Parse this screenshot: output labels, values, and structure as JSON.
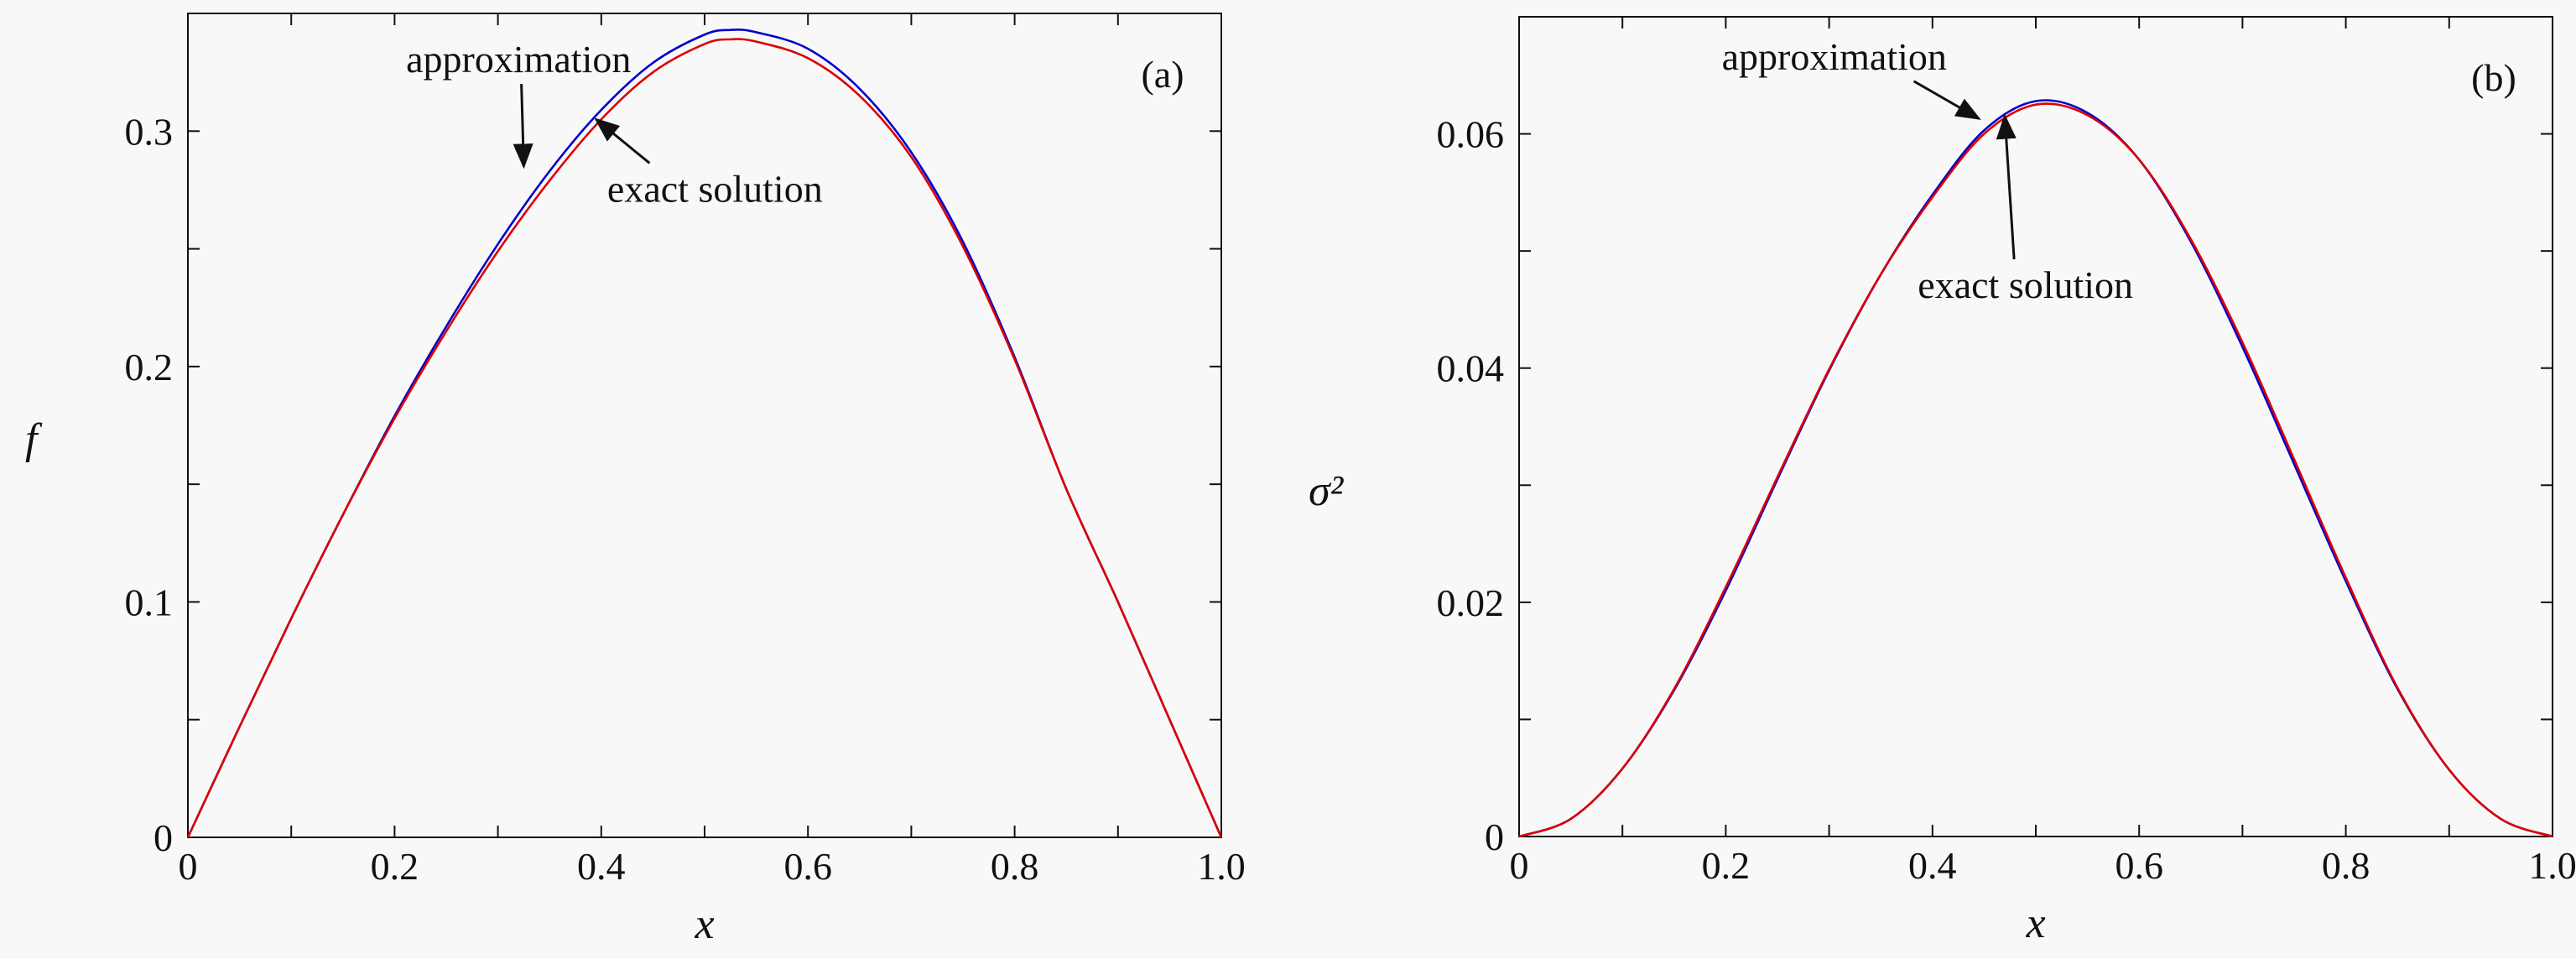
{
  "chart_data": [
    {
      "type": "line",
      "panel_label": "(a)",
      "xlabel": "x",
      "ylabel": "f",
      "xlim": [
        0,
        1.0
      ],
      "ylim": [
        0,
        0.35
      ],
      "xticks": [
        0,
        0.1,
        0.2,
        0.3,
        0.4,
        0.5,
        0.6,
        0.7,
        0.8,
        0.9,
        1.0
      ],
      "xtick_labels": [
        "0",
        "",
        "0.2",
        "",
        "0.4",
        "",
        "0.6",
        "",
        "0.8",
        "",
        "1.0"
      ],
      "yticks": [
        0,
        0.05,
        0.1,
        0.15,
        0.2,
        0.25,
        0.3,
        0.35
      ],
      "ytick_labels": [
        "0",
        "",
        "0.1",
        "",
        "0.2",
        "",
        "0.3",
        ""
      ],
      "grid": false,
      "series": [
        {
          "color": "#0000cc",
          "x": [
            0,
            0.05,
            0.1,
            0.15,
            0.2,
            0.25,
            0.3,
            0.35,
            0.4,
            0.45,
            0.5,
            0.525,
            0.55,
            0.6,
            0.65,
            0.7,
            0.75,
            0.8,
            0.85,
            0.9,
            0.95,
            1.0
          ],
          "values": [
            0,
            0.047,
            0.093,
            0.137,
            0.179,
            0.217,
            0.252,
            0.283,
            0.309,
            0.329,
            0.341,
            0.343,
            0.342,
            0.335,
            0.318,
            0.291,
            0.253,
            0.204,
            0.148,
            0.1,
            0.05,
            0
          ]
        },
        {
          "color": "#dd0000",
          "x": [
            0,
            0.05,
            0.1,
            0.15,
            0.2,
            0.25,
            0.3,
            0.35,
            0.4,
            0.45,
            0.5,
            0.525,
            0.55,
            0.6,
            0.65,
            0.7,
            0.75,
            0.8,
            0.85,
            0.9,
            0.95,
            1.0
          ],
          "values": [
            0,
            0.047,
            0.093,
            0.137,
            0.178,
            0.215,
            0.249,
            0.279,
            0.305,
            0.325,
            0.337,
            0.339,
            0.338,
            0.331,
            0.315,
            0.289,
            0.251,
            0.203,
            0.148,
            0.1,
            0.05,
            0
          ]
        }
      ],
      "annotations": [
        {
          "text": "approximation",
          "x": 0.32,
          "y": 0.325,
          "arrow_to": [
            0.325,
            0.285
          ]
        },
        {
          "text": "exact solution",
          "x": 0.51,
          "y": 0.27,
          "arrow_to": [
            0.395,
            0.305
          ]
        }
      ]
    },
    {
      "type": "line",
      "panel_label": "(b)",
      "xlabel": "x",
      "ylabel": "σ²",
      "xlim": [
        0,
        1.0
      ],
      "ylim": [
        0,
        0.07
      ],
      "xticks": [
        0,
        0.1,
        0.2,
        0.3,
        0.4,
        0.5,
        0.6,
        0.7,
        0.8,
        0.9,
        1.0
      ],
      "xtick_labels": [
        "0",
        "",
        "0.2",
        "",
        "0.4",
        "",
        "0.6",
        "",
        "0.8",
        "",
        "1.0"
      ],
      "yticks": [
        0,
        0.01,
        0.02,
        0.03,
        0.04,
        0.05,
        0.06,
        0.07
      ],
      "ytick_labels": [
        "0",
        "",
        "0.02",
        "",
        "0.04",
        "",
        "0.06",
        ""
      ],
      "grid": false,
      "series": [
        {
          "color": "#0000cc",
          "x": [
            0,
            0.05,
            0.1,
            0.15,
            0.2,
            0.25,
            0.3,
            0.35,
            0.4,
            0.45,
            0.5,
            0.55,
            0.6,
            0.65,
            0.7,
            0.75,
            0.8,
            0.85,
            0.9,
            0.95,
            1.0
          ],
          "values": [
            0,
            0.0015,
            0.0058,
            0.0125,
            0.021,
            0.0305,
            0.0398,
            0.048,
            0.0548,
            0.0603,
            0.0628,
            0.0618,
            0.0578,
            0.0508,
            0.0418,
            0.0318,
            0.0218,
            0.0126,
            0.0057,
            0.0015,
            0
          ]
        },
        {
          "color": "#dd0000",
          "x": [
            0,
            0.05,
            0.1,
            0.15,
            0.2,
            0.25,
            0.3,
            0.35,
            0.4,
            0.45,
            0.5,
            0.55,
            0.6,
            0.65,
            0.7,
            0.75,
            0.8,
            0.85,
            0.9,
            0.95,
            1.0
          ],
          "values": [
            0,
            0.0015,
            0.0058,
            0.0126,
            0.0213,
            0.0307,
            0.0399,
            0.048,
            0.0546,
            0.06,
            0.0625,
            0.0616,
            0.0578,
            0.051,
            0.0422,
            0.0322,
            0.0221,
            0.0127,
            0.0057,
            0.0015,
            0
          ]
        }
      ],
      "annotations": [
        {
          "text": "approximation",
          "x": 0.305,
          "y": 0.0655,
          "arrow_to": [
            0.445,
            0.0613
          ]
        },
        {
          "text": "exact solution",
          "x": 0.49,
          "y": 0.046,
          "arrow_to": [
            0.47,
            0.0615
          ]
        }
      ]
    }
  ]
}
